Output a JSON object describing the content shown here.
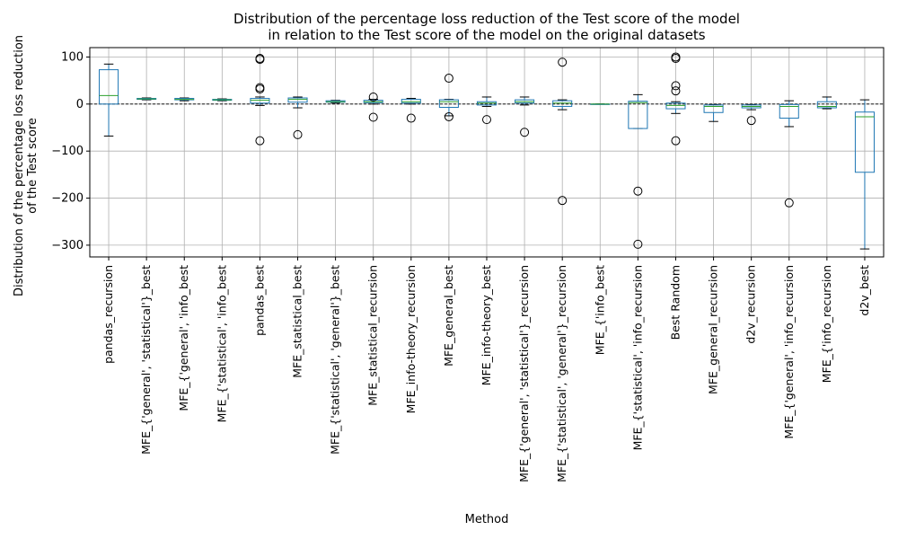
{
  "chart_data": {
    "type": "box",
    "title": "Distribution of the percentage loss reduction of the Test score of the model\nin relation to the Test score of the model on the original datasets",
    "xlabel": "Method",
    "ylabel": "Distribution of the percentage loss reduction\nof the Test score",
    "ylim": [
      -325,
      120
    ],
    "yticks": [
      100,
      0,
      -100,
      -200,
      -300
    ],
    "grid": true,
    "reference_line": 0,
    "colors": {
      "box": "#1f77b4",
      "median": "#2ca02c",
      "whisker": "#1f77b4",
      "cap": "#000000",
      "grid": "#b0b0b0",
      "outlier": "#000000"
    },
    "categories": [
      "pandas_recursion",
      "MFE_{'general', 'statistical'}_best",
      "MFE_{'general', 'info_best",
      "MFE_{'statistical', 'info_best",
      "pandas_best",
      "MFE_statistical_best",
      "MFE_{'statistical', 'general'}_best",
      "MFE_statistical_recursion",
      "MFE_info-theory_recursion",
      "MFE_general_best",
      "MFE_info-theory_best",
      "MFE_{'general', 'statistical'}_recursion",
      "MFE_{'statistical', 'general'}_recursion",
      "MFE_{'info_best",
      "MFE_{'statistical', 'info_recursion",
      "Best Random",
      "MFE_general_recursion",
      "d2v_recursion",
      "MFE_{'general', 'info_recursion",
      "MFE_{'info_recursion",
      "d2v_best"
    ],
    "boxes": [
      {
        "whislo": -68,
        "q1": 0,
        "med": 18,
        "q3": 73,
        "whishi": 85,
        "fliers": []
      },
      {
        "whislo": 9,
        "q1": 10,
        "med": 11,
        "q3": 12,
        "whishi": 13,
        "fliers": []
      },
      {
        "whislo": 7,
        "q1": 9,
        "med": 10,
        "q3": 12,
        "whishi": 13,
        "fliers": []
      },
      {
        "whislo": 7,
        "q1": 8,
        "med": 9,
        "q3": 10,
        "whishi": 11,
        "fliers": []
      },
      {
        "whislo": -3,
        "q1": 2,
        "med": 8,
        "q3": 12,
        "whishi": 15,
        "fliers": [
          97,
          95,
          35,
          32,
          -78
        ]
      },
      {
        "whislo": -8,
        "q1": 4,
        "med": 10,
        "q3": 13,
        "whishi": 15,
        "fliers": [
          -65
        ]
      },
      {
        "whislo": 2,
        "q1": 4,
        "med": 5,
        "q3": 7,
        "whishi": 8,
        "fliers": []
      },
      {
        "whislo": 0,
        "q1": 3,
        "med": 5,
        "q3": 8,
        "whishi": 10,
        "fliers": [
          15,
          -28
        ]
      },
      {
        "whislo": 0,
        "q1": 2,
        "med": 5,
        "q3": 10,
        "whishi": 12,
        "fliers": [
          -30
        ]
      },
      {
        "whislo": -25,
        "q1": -7,
        "med": 5,
        "q3": 9,
        "whishi": 10,
        "fliers": [
          55,
          -27
        ]
      },
      {
        "whislo": -5,
        "q1": -2,
        "med": 2,
        "q3": 5,
        "whishi": 15,
        "fliers": [
          -33
        ]
      },
      {
        "whislo": -2,
        "q1": 2,
        "med": 5,
        "q3": 9,
        "whishi": 15,
        "fliers": [
          -60
        ]
      },
      {
        "whislo": -12,
        "q1": -5,
        "med": 2,
        "q3": 7,
        "whishi": 9,
        "fliers": [
          89,
          -205
        ]
      },
      {
        "whislo": 0,
        "q1": 0,
        "med": 0,
        "q3": 0,
        "whishi": 0,
        "fliers": []
      },
      {
        "whislo": -52,
        "q1": -52,
        "med": 3,
        "q3": 6,
        "whishi": 20,
        "fliers": [
          -185,
          -298
        ]
      },
      {
        "whislo": -20,
        "q1": -10,
        "med": -3,
        "q3": 2,
        "whishi": 5,
        "fliers": [
          100,
          97,
          39,
          28,
          -78
        ]
      },
      {
        "whislo": -37,
        "q1": -18,
        "med": -5,
        "q3": -2,
        "whishi": -1,
        "fliers": []
      },
      {
        "whislo": -12,
        "q1": -8,
        "med": -5,
        "q3": -2,
        "whishi": -1,
        "fliers": [
          -35
        ]
      },
      {
        "whislo": -48,
        "q1": -30,
        "med": -5,
        "q3": -1,
        "whishi": 7,
        "fliers": [
          -210
        ]
      },
      {
        "whislo": -10,
        "q1": -8,
        "med": -5,
        "q3": 5,
        "whishi": 15,
        "fliers": []
      },
      {
        "whislo": -308,
        "q1": -145,
        "med": -27,
        "q3": -17,
        "whishi": 9,
        "fliers": []
      }
    ]
  }
}
